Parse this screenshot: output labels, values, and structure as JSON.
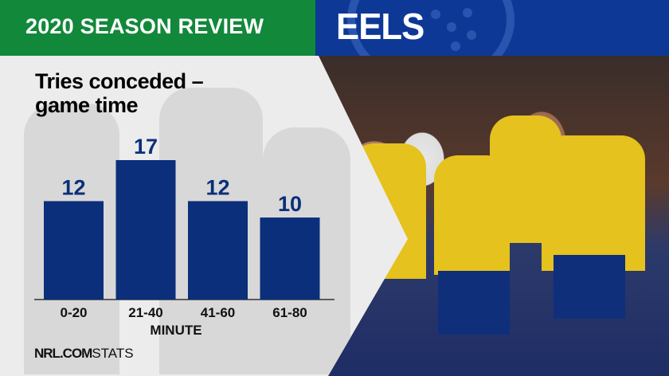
{
  "header": {
    "title": "2020 SEASON REVIEW",
    "team": "EELS"
  },
  "colors": {
    "header_green": "#12883a",
    "header_blue": "#0d3896",
    "bar": "#0b2f7a"
  },
  "footer": {
    "brand_bold": "NRL.COM",
    "brand_light": "STATS"
  },
  "chart_data": {
    "type": "bar",
    "title": "Tries conceded – game time",
    "categories": [
      "0-20",
      "21-40",
      "41-60",
      "61-80"
    ],
    "values": [
      12,
      17,
      12,
      10
    ],
    "xlabel": "MINUTE",
    "ylabel": "",
    "ylim": [
      0,
      17
    ],
    "grid": false,
    "data_labels": true
  }
}
